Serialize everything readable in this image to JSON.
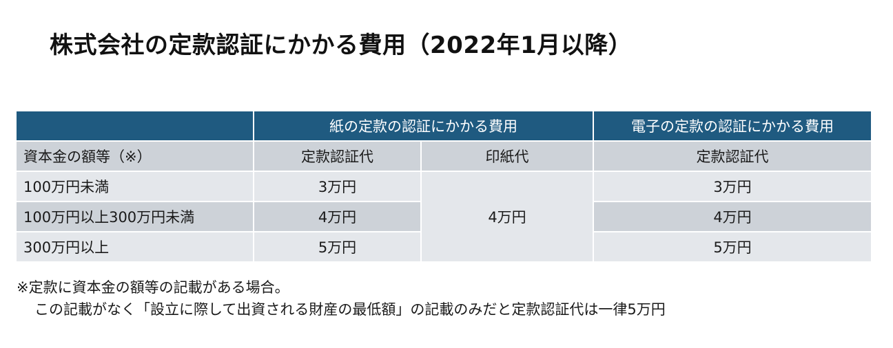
{
  "title": "株式会社の定款認証にかかる費用（2022年1月以降）",
  "table": {
    "group_headers": {
      "paper": "紙の定款の認証にかかる費用",
      "electronic": "電子の定款の認証にかかる費用"
    },
    "sub_headers": {
      "capital": "資本金の額等（※）",
      "paper_cert": "定款認証代",
      "stamp": "印紙代",
      "electronic_cert": "定款認証代"
    },
    "rows": [
      {
        "capital": "100万円未満",
        "paper_cert": "3万円",
        "electronic_cert": "3万円"
      },
      {
        "capital": "100万円以上300万円未満",
        "paper_cert": "4万円",
        "electronic_cert": "4万円"
      },
      {
        "capital": "300万円以上",
        "paper_cert": "5万円",
        "electronic_cert": "5万円"
      }
    ],
    "stamp_fee": "4万円"
  },
  "footnote": {
    "line1": "※定款に資本金の額等の記載がある場合。",
    "line2": "この記載がなく「設立に際して出資される財産の最低額」の記載のみだと定款認証代は一律5万円"
  }
}
